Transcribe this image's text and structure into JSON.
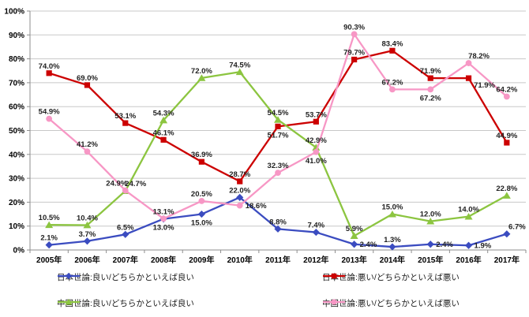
{
  "chart_data": {
    "type": "line",
    "title": "",
    "x_categories": [
      "2005年",
      "2006年",
      "2007年",
      "2008年",
      "2009年",
      "2010年",
      "2011年",
      "2012年",
      "2013年",
      "2014年",
      "2015年",
      "2016年",
      "2017年"
    ],
    "y_axis": {
      "min": 0,
      "max": 100,
      "step": 10,
      "suffix": "%"
    },
    "grid": true,
    "legend_position": "bottom two-column",
    "value_label_format": "one-decimal-percent",
    "colors": {
      "grid": "#c8c8c8",
      "axis": "#8e8e8e",
      "tick_text": "#000000",
      "data_label_text": "#222222"
    },
    "series": [
      {
        "name": "日本世論:良い/どちらかといえば良い",
        "color": "#3B4CC0",
        "marker": "diamond",
        "values": [
          2.1,
          3.7,
          6.5,
          13.0,
          15.0,
          22.0,
          8.8,
          7.4,
          2.4,
          1.3,
          2.4,
          1.9,
          6.7
        ],
        "label_pos": [
          "above",
          "above",
          "above",
          "below",
          "below",
          "above",
          "above",
          "above",
          "right",
          "above",
          "right",
          "right",
          "above-right"
        ]
      },
      {
        "name": "日本世論:悪い/どちらかといえば悪い",
        "color": "#CC0000",
        "marker": "square",
        "values": [
          74.0,
          69.0,
          53.1,
          46.1,
          36.9,
          28.7,
          51.7,
          53.7,
          79.7,
          83.4,
          71.9,
          71.9,
          44.9
        ],
        "label_pos": [
          "above",
          "above",
          "above",
          "above",
          "above",
          "above",
          "below",
          "above",
          "above",
          "above",
          "above",
          "below-right",
          "above"
        ]
      },
      {
        "name": "中国世論:良い/どちらかといえば良い",
        "color": "#8CC540",
        "marker": "triangle",
        "values": [
          10.5,
          10.4,
          24.7,
          54.3,
          72.0,
          74.5,
          54.5,
          42.9,
          5.9,
          15.0,
          12.0,
          14.0,
          22.8
        ],
        "label_pos": [
          "above",
          "above",
          "above-right",
          "above",
          "above",
          "above",
          "above",
          "above",
          "above",
          "above",
          "above",
          "above",
          "above"
        ]
      },
      {
        "name": "中国世論:悪い/どちらかといえば悪い",
        "color": "#F797C5",
        "marker": "circle",
        "values": [
          54.9,
          41.2,
          24.9,
          13.1,
          20.5,
          18.6,
          32.3,
          41.0,
          90.3,
          67.2,
          67.2,
          78.2,
          64.2
        ],
        "label_pos": [
          "above",
          "above",
          "above-left",
          "above",
          "above",
          "right",
          "above",
          "below",
          "above",
          "above",
          "below",
          "above-right",
          "above"
        ]
      }
    ]
  }
}
